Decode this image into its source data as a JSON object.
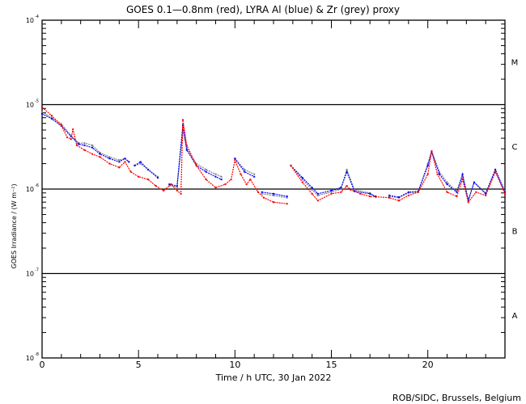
{
  "chart_data": {
    "type": "scatter",
    "title": "GOES 0.1—0.8nm (red), LYRA Al (blue) & Zr (grey) proxy",
    "xlabel": "Time / h UTC, 30 Jan 2022",
    "ylabel": "GOES Irradiance / (W m⁻²)",
    "xlim": [
      0,
      24
    ],
    "ylim": [
      1e-08,
      0.0001
    ],
    "yscale": "log",
    "x_ticks": [
      0,
      5,
      10,
      15,
      20
    ],
    "y_ticks": [
      {
        "value": 0.0001,
        "base": "10",
        "exp": "-4"
      },
      {
        "value": 1e-05,
        "base": "10",
        "exp": "-5"
      },
      {
        "value": 1e-06,
        "base": "10",
        "exp": "-6"
      },
      {
        "value": 1e-07,
        "base": "10",
        "exp": "-7"
      },
      {
        "value": 1e-08,
        "base": "10",
        "exp": "-8"
      }
    ],
    "flare_classes": [
      {
        "label": "M",
        "value": 3.2e-05
      },
      {
        "label": "C",
        "value": 3.2e-06
      },
      {
        "label": "B",
        "value": 3.2e-07
      },
      {
        "label": "A",
        "value": 3.2e-08
      }
    ],
    "class_lines": [
      1e-05,
      1e-06,
      1e-07
    ],
    "credit": "ROB/SIDC, Brussels, Belgium",
    "series": [
      {
        "name": "GOES 0.1-0.8nm",
        "color": "#ff0000",
        "x": [
          0,
          0.5,
          1,
          1.3,
          1.5,
          1.6,
          1.8,
          2.2,
          2.6,
          3,
          3.5,
          4,
          4.3,
          4.6,
          5,
          5.5,
          5.9,
          6.3,
          6.7,
          7.0,
          7.2,
          7.3,
          7.5,
          8,
          8.5,
          9,
          9.5,
          9.8,
          10,
          10.3,
          10.6,
          10.8,
          11.2,
          11.5,
          12,
          12.7,
          null,
          12.9,
          13.5,
          14,
          14.3,
          15,
          15.5,
          15.8,
          16,
          16.5,
          17,
          18,
          18.5,
          19,
          19.5,
          20,
          20.2,
          20.5,
          21,
          21.5,
          21.8,
          22.1,
          22.5,
          23,
          23.5,
          24
        ],
        "y": [
          9.3e-06,
          7.4e-06,
          5.7e-06,
          4.1e-06,
          3.9e-06,
          5.1e-06,
          3.3e-06,
          2.9e-06,
          2.6e-06,
          2.4e-06,
          2e-06,
          1.8e-06,
          2.1e-06,
          1.6e-06,
          1.4e-06,
          1.3e-06,
          1.09e-06,
          9.6e-07,
          1.14e-06,
          9.6e-07,
          8.8e-07,
          6.6e-06,
          3.3e-06,
          1.9e-06,
          1.3e-06,
          1.04e-06,
          1.14e-06,
          1.3e-06,
          2.2e-06,
          1.5e-06,
          1.14e-06,
          1.3e-06,
          9.2e-07,
          7.9e-07,
          7e-07,
          6.7e-07,
          null,
          1.9e-06,
          1.2e-06,
          8.8e-07,
          7.3e-07,
          8.8e-07,
          9.2e-07,
          1.09e-06,
          9.8e-07,
          8.8e-07,
          8.2e-07,
          7.9e-07,
          7.3e-07,
          8.4e-07,
          9.2e-07,
          1.5e-06,
          2.8e-06,
          1.5e-06,
          9.2e-07,
          8.2e-07,
          1.3e-06,
          7e-07,
          9.2e-07,
          8.4e-07,
          1.6e-06,
          8.8e-07
        ]
      },
      {
        "name": "LYRA Al proxy",
        "color": "#0000ff",
        "x": [
          0,
          0.5,
          1,
          1.5,
          1.9,
          2.2,
          2.6,
          3,
          3.5,
          4,
          4.3,
          4.5,
          null,
          4.8,
          5.1,
          5.5,
          6,
          null,
          6.6,
          7,
          7.3,
          7.5,
          8,
          8.5,
          9,
          9.3,
          null,
          10,
          10.5,
          11,
          null,
          11.4,
          12,
          12.7,
          null,
          12.9,
          13.5,
          14,
          14.3,
          15,
          15.5,
          15.8,
          16.2,
          17,
          17.3,
          null,
          18,
          18.5,
          19,
          19.5,
          20,
          20.2,
          20.6,
          21,
          21.5,
          21.8,
          22.1,
          22.4,
          23,
          23.5,
          24
        ],
        "y": [
          7.8e-06,
          6.8e-06,
          5.6e-06,
          4.2e-06,
          3.4e-06,
          3.3e-06,
          3.1e-06,
          2.6e-06,
          2.3e-06,
          2.1e-06,
          2.3e-06,
          2.1e-06,
          null,
          1.9e-06,
          2.1e-06,
          1.7e-06,
          1.36e-06,
          null,
          1.14e-06,
          1.09e-06,
          5.7e-06,
          2.9e-06,
          1.9e-06,
          1.6e-06,
          1.4e-06,
          1.3e-06,
          null,
          2.3e-06,
          1.6e-06,
          1.4e-06,
          null,
          9.2e-07,
          8.8e-07,
          8.2e-07,
          null,
          1.9e-06,
          1.36e-06,
          1.04e-06,
          8.8e-07,
          9.6e-07,
          1.04e-06,
          1.6e-06,
          9.4e-07,
          8.8e-07,
          8.2e-07,
          null,
          8.4e-07,
          8e-07,
          9.2e-07,
          9.4e-07,
          1.9e-06,
          2.8e-06,
          1.5e-06,
          1.14e-06,
          9.2e-07,
          1.5e-06,
          7.3e-07,
          1.2e-06,
          8.8e-07,
          1.7e-06,
          9.2e-07
        ]
      },
      {
        "name": "LYRA Zr proxy",
        "color": "#808080",
        "x": [
          0,
          0.5,
          1,
          1.5,
          1.9,
          2.2,
          2.6,
          3,
          3.5,
          4,
          4.3,
          4.5,
          null,
          4.8,
          5.1,
          5.5,
          6,
          null,
          6.6,
          7,
          7.3,
          7.5,
          8,
          8.5,
          9,
          9.3,
          null,
          10,
          10.5,
          11,
          null,
          11.4,
          12,
          12.7,
          null,
          12.9,
          13.5,
          14,
          14.3,
          15,
          15.5,
          15.8,
          16.2,
          17,
          17.3,
          null,
          18,
          18.5,
          19,
          19.5,
          20,
          20.2,
          20.6,
          21,
          21.5,
          21.8,
          22.1,
          22.4,
          23,
          23.5,
          24
        ],
        "y": [
          8.2e-06,
          7e-06,
          5.9e-06,
          4.3e-06,
          3.5e-06,
          3.5e-06,
          3.3e-06,
          2.7e-06,
          2.4e-06,
          2.2e-06,
          2.3e-06,
          2.1e-06,
          null,
          1.9e-06,
          2e-06,
          1.7e-06,
          1.4e-06,
          null,
          1.1e-06,
          1.05e-06,
          5e-06,
          3e-06,
          2e-06,
          1.7e-06,
          1.5e-06,
          1.4e-06,
          null,
          2.3e-06,
          1.7e-06,
          1.5e-06,
          null,
          8.8e-07,
          8.4e-07,
          7.9e-07,
          null,
          1.9e-06,
          1.3e-06,
          9.8e-07,
          8.4e-07,
          9.2e-07,
          1e-06,
          1.7e-06,
          9.8e-07,
          9e-07,
          8e-07,
          null,
          8.2e-07,
          7.9e-07,
          9e-07,
          9.2e-07,
          2e-06,
          2.8e-06,
          1.6e-06,
          1.2e-06,
          9.4e-07,
          1.4e-06,
          7.5e-07,
          1.2e-06,
          9e-07,
          1.7e-06,
          9.4e-07
        ]
      }
    ]
  }
}
